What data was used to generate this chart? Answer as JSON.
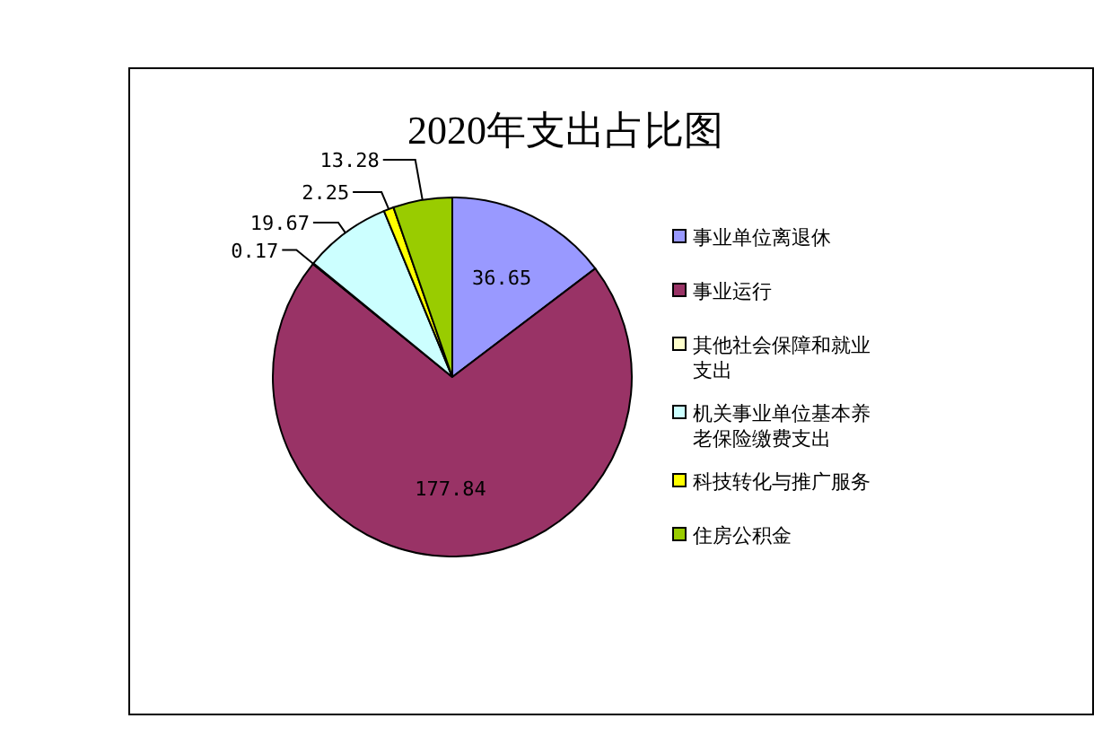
{
  "chart_data": {
    "type": "pie",
    "title": "2020年支出占比图",
    "categories": [
      "事业单位离退休",
      "事业运行",
      "其他社会保障和就业支出",
      "机关事业单位基本养老保险缴费支出",
      "科技转化与推广服务",
      "住房公积金"
    ],
    "values": [
      36.65,
      177.84,
      0.17,
      19.67,
      2.25,
      13.28
    ],
    "colors": [
      "#9999ff",
      "#993366",
      "#ffffcc",
      "#ccffff",
      "#ffff00",
      "#99cc00"
    ],
    "data_labels": true,
    "legend": "right"
  }
}
